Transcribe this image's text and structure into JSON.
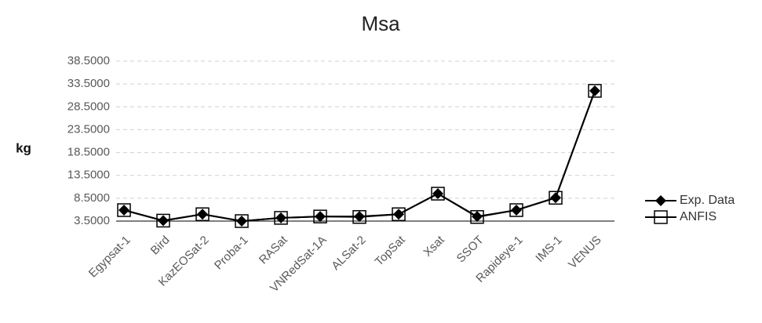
{
  "chart_data": {
    "type": "line",
    "title": "Msa",
    "y_label": "kg",
    "categories": [
      "Egypsat-1",
      "Bird",
      "KazEOSat-2",
      "Proba-1",
      "RASat",
      "VNRedSat-1A",
      "ALSat-2",
      "TopSat",
      "Xsat",
      "SSOT",
      "Rapideye-1",
      "IMS-1",
      "VENUS"
    ],
    "series": [
      {
        "name": "Exp. Data",
        "color": "#000000",
        "marker": "diamond",
        "values": [
          5.9,
          3.6,
          5.0,
          3.5,
          4.2,
          4.5,
          4.5,
          5.0,
          9.5,
          4.5,
          5.9,
          8.6,
          32.0
        ]
      },
      {
        "name": "ANFIS",
        "color": "#000000",
        "marker": "square",
        "values": [
          5.9,
          3.6,
          5.0,
          3.5,
          4.2,
          4.5,
          4.4,
          5.0,
          9.5,
          4.4,
          5.9,
          8.6,
          32.0
        ]
      }
    ],
    "ylim": [
      3.5,
      38.5
    ],
    "yticks": [
      {
        "value": 3.5,
        "label": "3.5000"
      },
      {
        "value": 8.5,
        "label": "8.5000"
      },
      {
        "value": 13.5,
        "label": "13.5000"
      },
      {
        "value": 18.5,
        "label": "18.5000"
      },
      {
        "value": 23.5,
        "label": "23.5000"
      },
      {
        "value": 28.5,
        "label": "28.5000"
      },
      {
        "value": 33.5,
        "label": "33.5000"
      },
      {
        "value": 38.5,
        "label": "38.5000"
      }
    ],
    "grid": true,
    "legend": "right"
  }
}
